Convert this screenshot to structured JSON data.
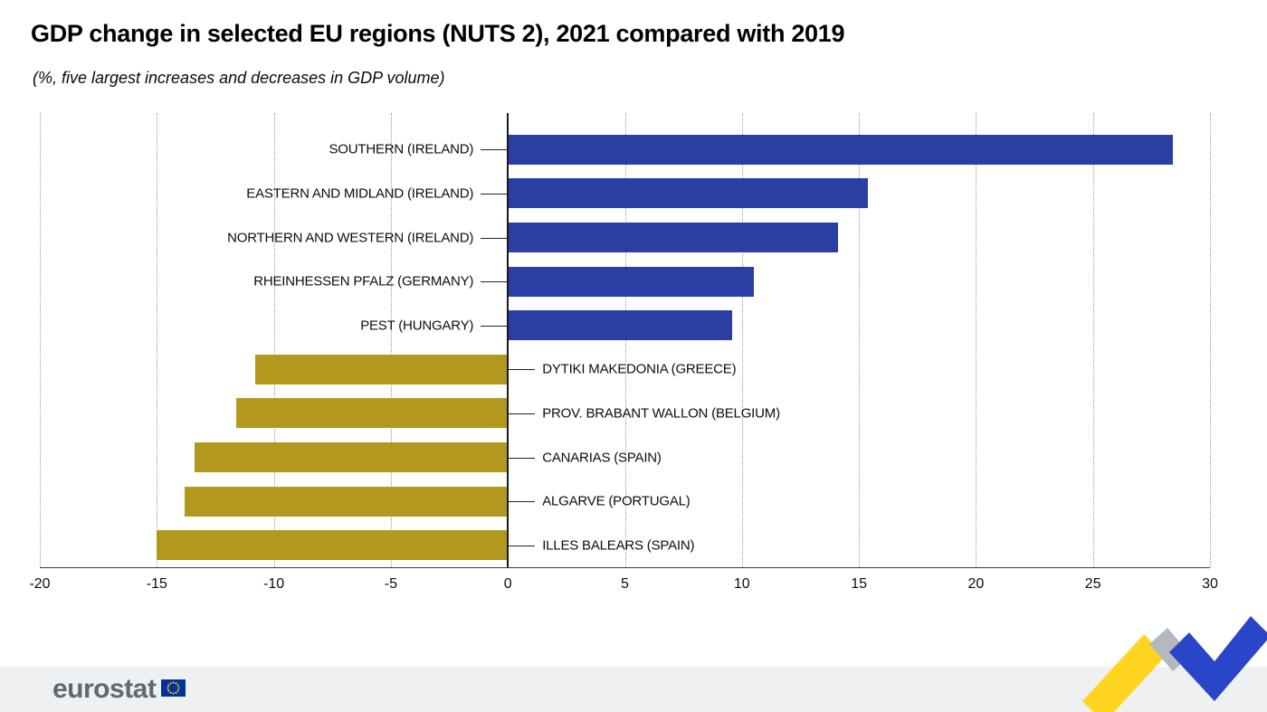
{
  "title": "GDP change in selected EU regions (NUTS 2), 2021 compared with 2019",
  "subtitle": "(%, five largest increases and decreases in GDP volume)",
  "chart_data": {
    "type": "bar",
    "orientation": "horizontal",
    "title": "GDP change in selected EU regions (NUTS 2), 2021 compared with 2019",
    "subtitle": "(%, five largest increases and decreases in GDP volume)",
    "categories": [
      "SOUTHERN (IRELAND)",
      "EASTERN AND MIDLAND (IRELAND)",
      "NORTHERN AND WESTERN (IRELAND)",
      "RHEINHESSEN PFALZ (GERMANY)",
      "PEST (HUNGARY)",
      "DYTIKI MAKEDONIA (GREECE)",
      "PROV. BRABANT WALLON (BELGIUM)",
      "CANARIAS (SPAIN)",
      "ALGARVE (PORTUGAL)",
      "ILLES BALEARS (SPAIN)"
    ],
    "values": [
      28.4,
      15.4,
      14.1,
      10.5,
      9.6,
      -10.8,
      -11.6,
      -13.4,
      -13.8,
      -15.0
    ],
    "xlim": [
      -20,
      30
    ],
    "xticks": [
      -20,
      -15,
      -10,
      -5,
      0,
      5,
      10,
      15,
      20,
      25,
      30
    ],
    "grid": "vertical-dotted",
    "legend": "none",
    "positive_color": "#2B3FA2",
    "negative_color": "#B2991E"
  },
  "footer": {
    "logo_text": "eurostat"
  },
  "colors": {
    "axis": "#1a1a1a",
    "gridline": "#9b9b9b",
    "footer_band": "#eef0f2",
    "logo_gray": "#5d6974",
    "flag_blue": "#003399",
    "flag_star_yellow": "#FFCC00",
    "swoosh_yellow": "#FFD520",
    "swoosh_gray": "#B4B8C0",
    "swoosh_blue": "#2A46C8"
  }
}
